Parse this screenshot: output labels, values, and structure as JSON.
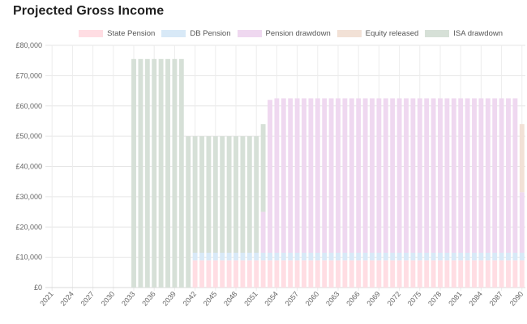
{
  "title": "Projected Gross Income",
  "chart_data": {
    "type": "bar",
    "stacked": true,
    "title": "Projected Gross Income",
    "xlabel": "",
    "ylabel": "",
    "ylim": [
      0,
      80000
    ],
    "yticks": [
      0,
      10000,
      20000,
      30000,
      40000,
      50000,
      60000,
      70000,
      80000
    ],
    "ytick_labels": [
      "£0",
      "£10,000",
      "£20,000",
      "£30,000",
      "£40,000",
      "£50,000",
      "£60,000",
      "£70,000",
      "£80,000"
    ],
    "x_start": 2021,
    "x_end": 2090,
    "x_tick_labels": [
      "2021",
      "2024",
      "2027",
      "2030",
      "2033",
      "2036",
      "2039",
      "2042",
      "2045",
      "2048",
      "2051",
      "2054",
      "2057",
      "2060",
      "2063",
      "2066",
      "2069",
      "2072",
      "2075",
      "2078",
      "2081",
      "2084",
      "2087",
      "2090"
    ],
    "grid": true,
    "legend_position": "top",
    "series": [
      {
        "name": "State Pension",
        "color": "#ffdde3",
        "periods": [
          {
            "from": 2042,
            "to": 2090,
            "value": 9000
          }
        ]
      },
      {
        "name": "DB Pension",
        "color": "#d8e9f7",
        "periods": [
          {
            "from": 2042,
            "to": 2090,
            "value": 2500
          }
        ]
      },
      {
        "name": "Pension drawdown",
        "color": "#efd8f0",
        "periods": [
          {
            "from": 2052,
            "to": 2052,
            "value": 13500
          },
          {
            "from": 2053,
            "to": 2053,
            "value": 50500
          },
          {
            "from": 2054,
            "to": 2089,
            "value": 51000
          },
          {
            "from": 2090,
            "to": 2090,
            "value": 20000
          }
        ]
      },
      {
        "name": "Equity released",
        "color": "#f2e1d6",
        "periods": [
          {
            "from": 2090,
            "to": 2090,
            "value": 22500
          }
        ]
      },
      {
        "name": "ISA drawdown",
        "color": "#d6e0d7",
        "periods": [
          {
            "from": 2033,
            "to": 2040,
            "value": 75500
          },
          {
            "from": 2041,
            "to": 2041,
            "value": 50000
          },
          {
            "from": 2042,
            "to": 2051,
            "value": 38500
          },
          {
            "from": 2052,
            "to": 2052,
            "value": 29000
          }
        ]
      }
    ]
  }
}
